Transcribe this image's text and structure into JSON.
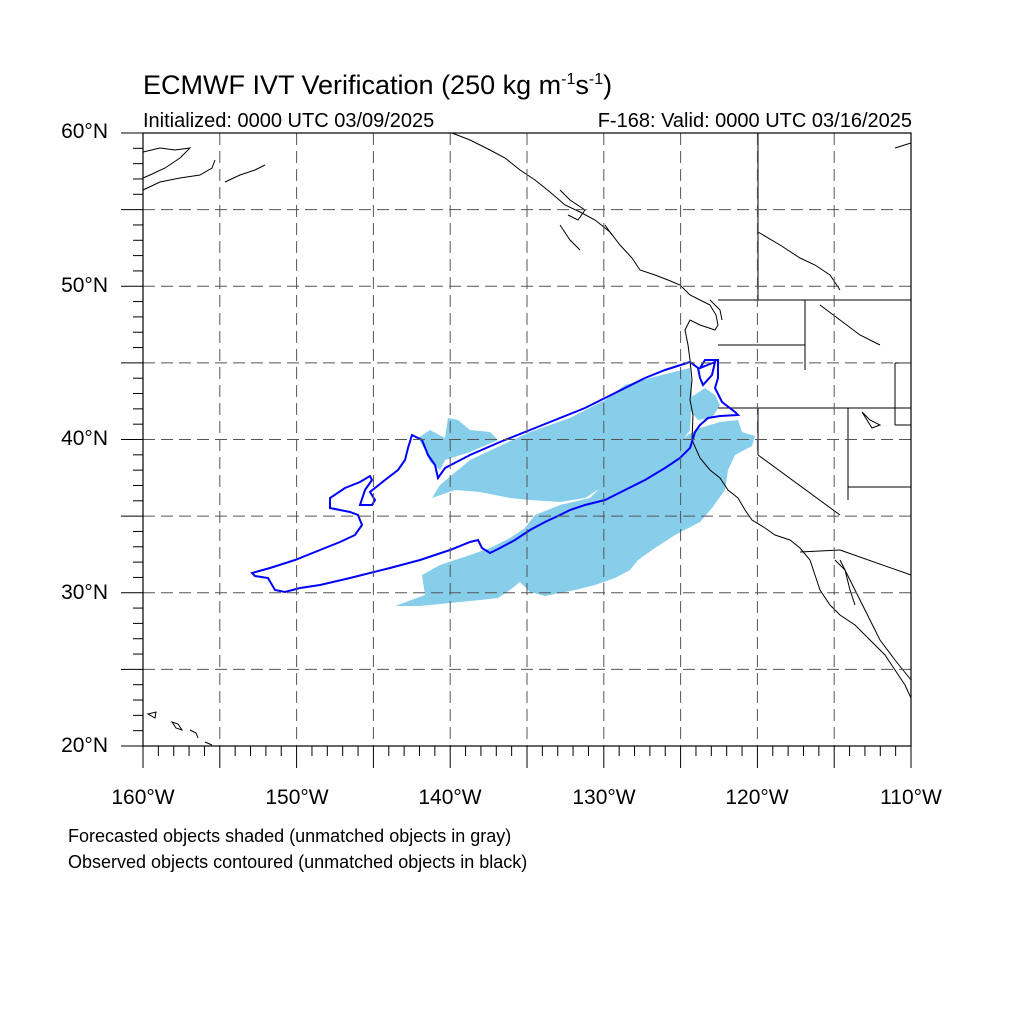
{
  "header": {
    "title_main": "ECMWF IVT Verification (250 kg m",
    "title_sup1": "-1",
    "title_mid": "s",
    "title_sup2": "-1",
    "title_end": ")",
    "initialized": "Initialized: 0000 UTC 03/09/2025",
    "valid": "F-168: Valid: 0000 UTC 03/16/2025"
  },
  "axes": {
    "lat_labels": [
      "60°N",
      "50°N",
      "40°N",
      "30°N",
      "20°N"
    ],
    "lon_labels": [
      "160°W",
      "150°W",
      "140°W",
      "130°W",
      "120°W",
      "110°W"
    ],
    "lat_range": [
      20,
      60
    ],
    "lon_range": [
      -160,
      -110
    ],
    "grid": true
  },
  "colors": {
    "forecast_fill": "#87ceeb",
    "observed_contour": "#0000ff",
    "coastline": "#000000",
    "grid": "#444444"
  },
  "legend": {
    "line1": "Forecasted objects shaded (unmatched objects in gray)",
    "line2": "Observed objects contoured (unmatched objects in black)"
  }
}
